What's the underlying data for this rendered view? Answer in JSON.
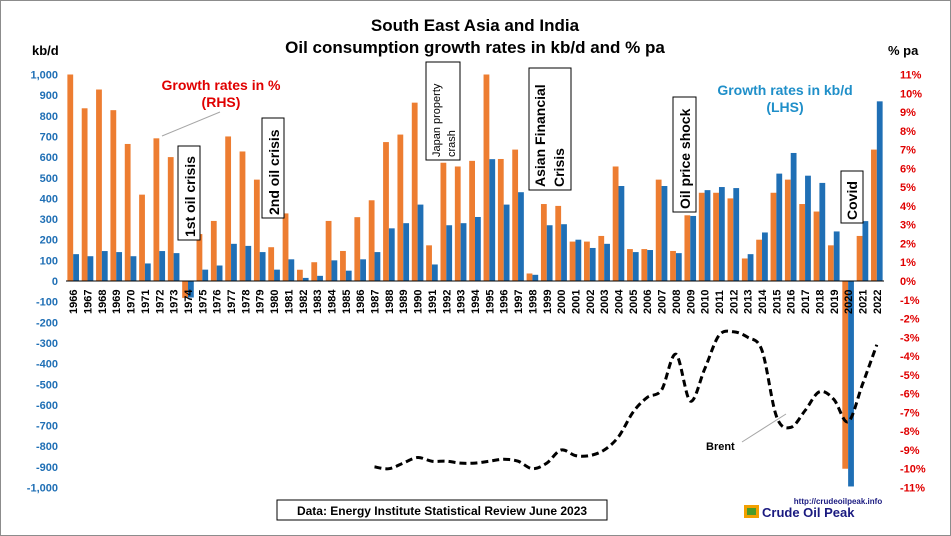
{
  "chart_data": {
    "type": "bar",
    "title": "South East Asia and India",
    "subtitle": "Oil consumption growth rates in kb/d and % pa",
    "y_left_unit": "kb/d",
    "y_right_unit": "% pa",
    "y_left_range": [
      -1000,
      1000
    ],
    "y_right_range": [
      -11,
      11
    ],
    "y_left_ticks": [
      "-1,000",
      "-900",
      "-800",
      "-700",
      "-600",
      "-500",
      "-400",
      "-300",
      "-200",
      "-100",
      "0",
      "100",
      "200",
      "300",
      "400",
      "500",
      "600",
      "700",
      "800",
      "900",
      "1,000"
    ],
    "y_right_ticks": [
      "-11%",
      "-10%",
      "-9%",
      "-8%",
      "-7%",
      "-6%",
      "-5%",
      "-4%",
      "-3%",
      "-2%",
      "-1%",
      "0%",
      "1%",
      "2%",
      "3%",
      "4%",
      "5%",
      "6%",
      "7%",
      "8%",
      "9%",
      "10%",
      "11%"
    ],
    "categories": [
      "1966",
      "1967",
      "1968",
      "1969",
      "1970",
      "1971",
      "1972",
      "1973",
      "1974",
      "1975",
      "1976",
      "1977",
      "1978",
      "1979",
      "1980",
      "1981",
      "1982",
      "1983",
      "1984",
      "1985",
      "1986",
      "1987",
      "1988",
      "1989",
      "1990",
      "1991",
      "1992",
      "1993",
      "1994",
      "1995",
      "1996",
      "1997",
      "1998",
      "1999",
      "2000",
      "2001",
      "2002",
      "2003",
      "2004",
      "2005",
      "2006",
      "2007",
      "2008",
      "2009",
      "2010",
      "2011",
      "2012",
      "2013",
      "2014",
      "2015",
      "2016",
      "2017",
      "2018",
      "2019",
      "2020",
      "2021",
      "2022"
    ],
    "series": [
      {
        "name": "Growth rates in %",
        "axis": "right",
        "color": "#ed7d31",
        "values": [
          11.0,
          9.2,
          10.2,
          9.1,
          7.3,
          4.6,
          7.6,
          6.6,
          -0.9,
          2.5,
          3.2,
          7.7,
          6.9,
          5.4,
          1.8,
          3.6,
          0.6,
          1.0,
          3.2,
          1.6,
          3.4,
          4.3,
          7.4,
          7.8,
          9.5,
          1.9,
          6.3,
          6.1,
          6.4,
          11.0,
          6.5,
          7.0,
          0.4,
          4.1,
          4.0,
          2.1,
          2.1,
          2.4,
          6.1,
          1.7,
          1.7,
          5.4,
          1.6,
          3.5,
          4.7,
          4.7,
          4.4,
          1.2,
          2.2,
          4.7,
          5.4,
          4.1,
          3.7,
          1.9,
          -10.0,
          2.4,
          7.0
        ]
      },
      {
        "name": "Growth rates in kb/d",
        "axis": "left",
        "color": "#1f6fb5",
        "values": [
          130,
          120,
          145,
          140,
          120,
          85,
          145,
          135,
          -80,
          55,
          75,
          180,
          170,
          140,
          55,
          105,
          15,
          25,
          100,
          50,
          105,
          140,
          255,
          280,
          370,
          80,
          270,
          280,
          310,
          590,
          370,
          430,
          30,
          270,
          275,
          200,
          160,
          180,
          460,
          140,
          150,
          460,
          135,
          315,
          440,
          455,
          450,
          130,
          235,
          520,
          620,
          510,
          475,
          240,
          -995,
          290,
          870
        ]
      },
      {
        "name": "Brent",
        "axis": "right",
        "color": "#000000",
        "x": [
          "1987",
          "1988",
          "1989",
          "1990",
          "1991",
          "1992",
          "1993",
          "1994",
          "1995",
          "1996",
          "1997",
          "1998",
          "1999",
          "2000",
          "2001",
          "2002",
          "2003",
          "2004",
          "2005",
          "2006",
          "2007",
          "2008",
          "2009",
          "2010",
          "2011",
          "2012",
          "2013",
          "2014",
          "2015",
          "2016",
          "2017",
          "2018",
          "2019",
          "2020",
          "2021",
          "2022"
        ],
        "values": [
          -9.9,
          -10.0,
          -9.7,
          -9.4,
          -9.6,
          -9.6,
          -9.7,
          -9.7,
          -9.6,
          -9.5,
          -9.6,
          -10.0,
          -9.7,
          -9.0,
          -9.3,
          -9.3,
          -9.0,
          -8.3,
          -7.0,
          -6.2,
          -5.8,
          -3.9,
          -6.4,
          -4.7,
          -2.9,
          -2.7,
          -3.0,
          -3.7,
          -7.2,
          -7.8,
          -6.9,
          -5.9,
          -6.3,
          -7.5,
          -5.5,
          -3.4
        ]
      }
    ],
    "annotations": {
      "oil_crisis_1": "1st oil crisis",
      "oil_crisis_2": "2nd oil crisis",
      "japan_crash": "Japan property crash",
      "asian_crisis": "Asian Financial Crisis",
      "oil_price_shock": "Oil price shock",
      "covid": "Covid"
    },
    "callouts": {
      "rhs_label": [
        "Growth rates in %",
        "(RHS)"
      ],
      "lhs_label": [
        "Growth rates in kb/d",
        "(LHS)"
      ],
      "brent_label": "Brent"
    },
    "source_note": "Data: Energy Institute  Statistical Review June 2023",
    "logo": {
      "url": "http://crudeoilpeak.info",
      "name": "Crude Oil Peak"
    },
    "grid": false
  }
}
